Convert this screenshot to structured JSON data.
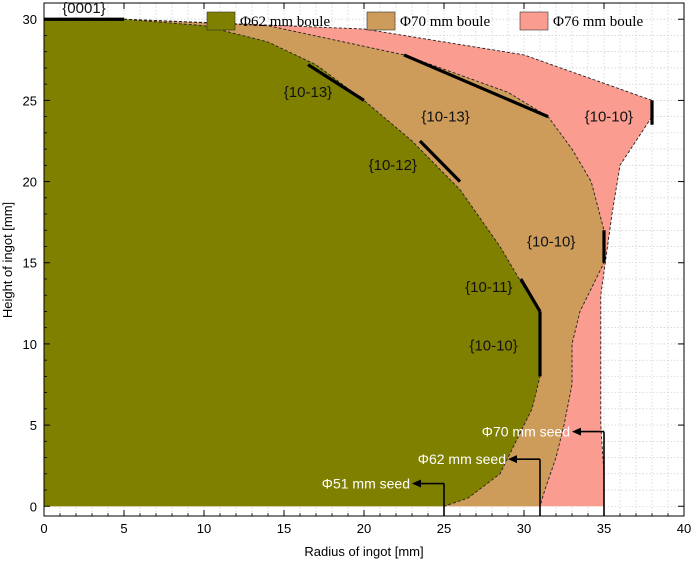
{
  "chart_data": {
    "type": "area",
    "xlabel": "Radius of ingot [mm]",
    "ylabel": "Height of ingot [mm]",
    "xlim": [
      0,
      40
    ],
    "ylim": [
      -0.6,
      31
    ],
    "xticks": [
      0,
      5,
      10,
      15,
      20,
      25,
      30,
      35,
      40
    ],
    "yticks": [
      0,
      5,
      10,
      15,
      20,
      25,
      30
    ],
    "grid": true,
    "legend_position": "top",
    "series": [
      {
        "name": "Φ62 mm boule",
        "color": "#808000",
        "boundary": [
          [
            0,
            30
          ],
          [
            5,
            30
          ],
          [
            10,
            29.6
          ],
          [
            14,
            28.6
          ],
          [
            17,
            27.2
          ],
          [
            20,
            25
          ],
          [
            23,
            22.5
          ],
          [
            26,
            19.5
          ],
          [
            28.5,
            16
          ],
          [
            30,
            13.5
          ],
          [
            31,
            12
          ],
          [
            31,
            8
          ],
          [
            30.5,
            6
          ],
          [
            29.5,
            4
          ],
          [
            28.5,
            2
          ],
          [
            26.5,
            0.5
          ],
          [
            25,
            0
          ]
        ]
      },
      {
        "name": "Φ70 mm boule",
        "color": "#cd9c5b",
        "boundary": [
          [
            5,
            30
          ],
          [
            14,
            29.6
          ],
          [
            22.5,
            27.8
          ],
          [
            29,
            25.5
          ],
          [
            31.5,
            24
          ],
          [
            33,
            22
          ],
          [
            34.2,
            20
          ],
          [
            35,
            17
          ],
          [
            35,
            15
          ],
          [
            33.5,
            12
          ],
          [
            33,
            10
          ],
          [
            33,
            7.5
          ],
          [
            32.5,
            5
          ],
          [
            32,
            3
          ],
          [
            31.3,
            1
          ],
          [
            31,
            0
          ]
        ]
      },
      {
        "name": "Φ76 mm boule",
        "color": "#fb9c90",
        "boundary": [
          [
            5,
            30
          ],
          [
            20,
            29.4
          ],
          [
            30,
            27.8
          ],
          [
            38,
            25
          ],
          [
            38,
            24
          ],
          [
            36,
            21
          ],
          [
            35.5,
            18
          ],
          [
            34.8,
            13
          ],
          [
            34.8,
            10
          ],
          [
            34.8,
            5
          ],
          [
            35,
            2
          ],
          [
            35,
            0.5
          ],
          [
            35,
            0
          ]
        ]
      }
    ],
    "facets": [
      {
        "label": "{0001}",
        "from": [
          0,
          30
        ],
        "to": [
          5,
          30
        ]
      },
      {
        "label": "{10-13}",
        "from": [
          16.5,
          27.2
        ],
        "to": [
          20,
          25
        ]
      },
      {
        "label": "{10-12}",
        "from": [
          23.5,
          22.5
        ],
        "to": [
          26,
          20
        ]
      },
      {
        "label": "{10-11}",
        "from": [
          29.8,
          14
        ],
        "to": [
          31,
          12
        ]
      },
      {
        "label": "{10-10}",
        "from": [
          31,
          12
        ],
        "to": [
          31,
          8
        ]
      },
      {
        "label": "{10-13}",
        "from": [
          22.5,
          27.8
        ],
        "to": [
          31.5,
          24
        ]
      },
      {
        "label": "{10-10}",
        "from": [
          35,
          17
        ],
        "to": [
          35,
          15
        ]
      },
      {
        "label": "{10-10}",
        "from": [
          38,
          25
        ],
        "to": [
          38,
          23.5
        ]
      }
    ],
    "seeds": [
      {
        "label": "Φ51 mm seed",
        "x": 25,
        "y": 1.4,
        "label_x": 23
      },
      {
        "label": "Φ62 mm seed",
        "x": 31,
        "y": 2.9,
        "label_x": 29
      },
      {
        "label": "Φ70 mm seed",
        "x": 35,
        "y": 4.6,
        "label_x": 33
      }
    ],
    "label_positions": [
      {
        "label": "{0001}",
        "x": 2.5,
        "y": 30.4
      },
      {
        "label": "{10-13}",
        "x": 16.5,
        "y": 25.2
      },
      {
        "label": "{10-12}",
        "x": 21.8,
        "y": 20.7
      },
      {
        "label": "{10-11}",
        "x": 27.8,
        "y": 13.2
      },
      {
        "label": "{10-10}",
        "x": 28.1,
        "y": 9.6
      },
      {
        "label": "{10-13}",
        "x": 25.1,
        "y": 23.7
      },
      {
        "label": "{10-10}",
        "x": 31.7,
        "y": 16
      },
      {
        "label": "{10-10}",
        "x": 35.3,
        "y": 23.7
      }
    ]
  }
}
